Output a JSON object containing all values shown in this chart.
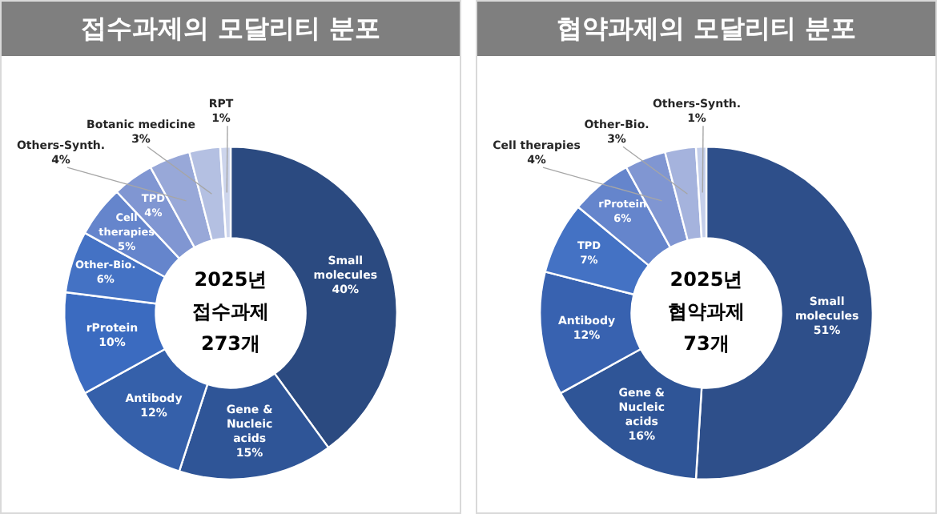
{
  "chart_data": [
    {
      "type": "donut",
      "title": "접수과제의 모달리티 분포",
      "categories": [
        "Small molecules",
        "Gene & Nucleic acids",
        "Antibody",
        "rProtein",
        "Other-Bio.",
        "Cell therapies",
        "TPD",
        "Others-Synth.",
        "Botanic medicine",
        "RPT"
      ],
      "values": [
        40,
        15,
        12,
        10,
        6,
        5,
        4,
        4,
        3,
        1
      ],
      "value_labels": [
        "40%",
        "15%",
        "12%",
        "10%",
        "6%",
        "5%",
        "4%",
        "4%",
        "3%",
        "1%"
      ],
      "colors": [
        "#2b4a80",
        "#2f5597",
        "#3560aa",
        "#3b6bc0",
        "#4472c4",
        "#6585cc",
        "#8096d2",
        "#98a8d8",
        "#b4c0e2",
        "#cdd5ec"
      ],
      "annotations": [
        "2025년",
        "접수과제",
        "273개"
      ],
      "legend": false
    },
    {
      "type": "donut",
      "title": "협약과제의 모달리티 분포",
      "categories": [
        "Small molecules",
        "Gene & Nucleic acids",
        "Antibody",
        "TPD",
        "rProtein",
        "Cell therapies",
        "Other-Bio.",
        "Others-Synth."
      ],
      "values": [
        51,
        16,
        12,
        7,
        6,
        4,
        3,
        1
      ],
      "value_labels": [
        "51%",
        "16%",
        "12%",
        "7%",
        "6%",
        "4%",
        "3%",
        "1%"
      ],
      "colors": [
        "#2e4f8a",
        "#2f5597",
        "#3862b0",
        "#4472c4",
        "#6585cc",
        "#8096d2",
        "#a5b3dd",
        "#c5cfea"
      ],
      "annotations": [
        "2025년",
        "협약과제",
        "73개"
      ],
      "legend": false
    }
  ]
}
